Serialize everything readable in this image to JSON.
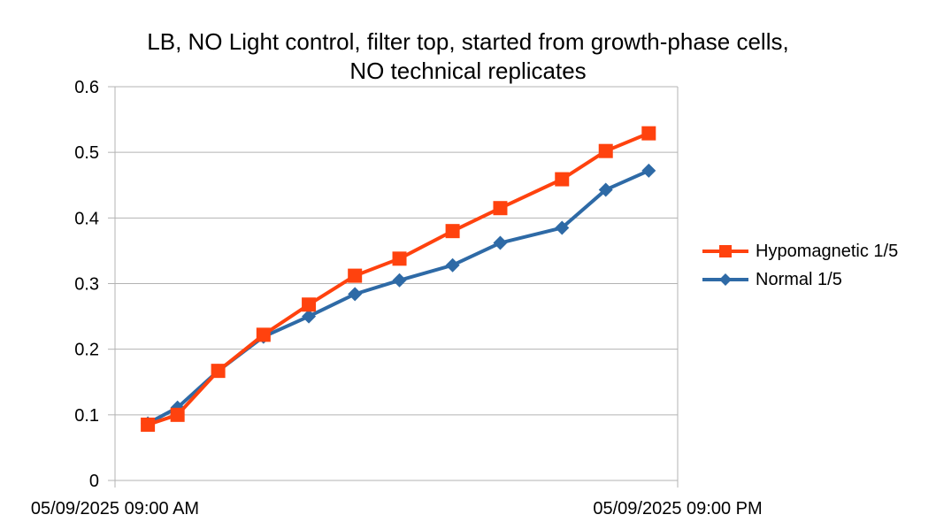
{
  "chart_data": {
    "type": "line",
    "title_lines": [
      "LB, NO Light control, filter top, started from growth-phase cells,",
      "NO technical replicates"
    ],
    "xlabel": "",
    "ylabel": "",
    "x_tick_labels": [
      "05/09/2025 09:00 AM",
      "05/09/2025 09:00 PM"
    ],
    "xlim": [
      "2025-05-09T09:00",
      "2025-05-09T21:00"
    ],
    "ylim": [
      0,
      0.6
    ],
    "y_ticks": [
      "0",
      "0.1",
      "0.2",
      "0.3",
      "0.4",
      "0.5",
      "0.6"
    ],
    "grid": true,
    "legend_position": "right",
    "series": [
      {
        "name": "Hypomagnetic 1/5",
        "color": "#ff420e",
        "marker": "square",
        "x": [
          "2025-05-09T09:42",
          "2025-05-09T10:20",
          "2025-05-09T11:12",
          "2025-05-09T12:10",
          "2025-05-09T13:08",
          "2025-05-09T14:07",
          "2025-05-09T15:04",
          "2025-05-09T16:12",
          "2025-05-09T17:13",
          "2025-05-09T18:32",
          "2025-05-09T19:28",
          "2025-05-09T20:23"
        ],
        "y": [
          0.085,
          0.1,
          0.167,
          0.222,
          0.268,
          0.312,
          0.338,
          0.38,
          0.415,
          0.459,
          0.502,
          0.529
        ]
      },
      {
        "name": "Normal 1/5",
        "color": "#2e6aa6",
        "marker": "diamond",
        "x": [
          "2025-05-09T09:42",
          "2025-05-09T10:20",
          "2025-05-09T11:12",
          "2025-05-09T12:10",
          "2025-05-09T13:08",
          "2025-05-09T14:07",
          "2025-05-09T15:04",
          "2025-05-09T16:12",
          "2025-05-09T17:13",
          "2025-05-09T18:32",
          "2025-05-09T19:28",
          "2025-05-09T20:23"
        ],
        "y": [
          0.087,
          0.111,
          0.167,
          0.219,
          0.25,
          0.284,
          0.305,
          0.328,
          0.362,
          0.385,
          0.443,
          0.472
        ]
      }
    ]
  }
}
